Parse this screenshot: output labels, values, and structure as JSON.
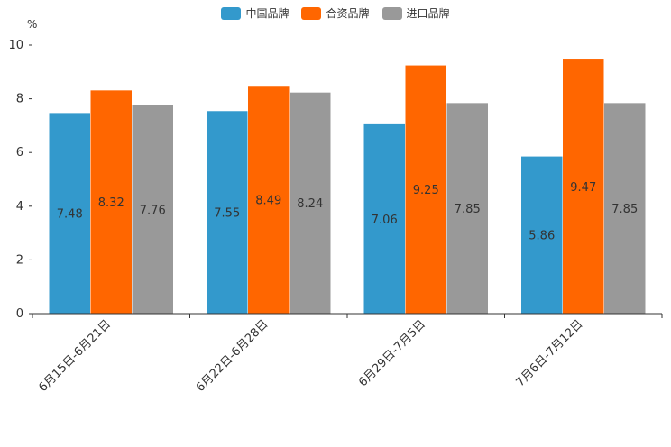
{
  "chart_data": {
    "type": "bar",
    "unit": "%",
    "categories": [
      "6月15日-6月21日",
      "6月22日-6月28日",
      "6月29日-7月5日",
      "7月6日-7月12日"
    ],
    "series": [
      {
        "name": "中国品牌",
        "color": "#3399cc",
        "values": [
          7.48,
          7.55,
          7.06,
          5.86
        ]
      },
      {
        "name": "合资品牌",
        "color": "#ff6600",
        "values": [
          8.32,
          8.49,
          9.25,
          9.47
        ]
      },
      {
        "name": "进口品牌",
        "color": "#999999",
        "values": [
          7.76,
          8.24,
          7.85,
          7.85
        ]
      }
    ],
    "value_labels": [
      [
        "7.48",
        "7.55",
        "7.06",
        "5.86"
      ],
      [
        "8.32",
        "8.49",
        "9.25",
        "9.47"
      ],
      [
        "7.76",
        "8.24",
        "7.85",
        "7.85"
      ]
    ],
    "yticks": [
      "0",
      "2",
      "4",
      "6",
      "8",
      "10"
    ],
    "ylim": [
      0,
      10
    ],
    "legend_position": "top-center",
    "grid": false
  }
}
